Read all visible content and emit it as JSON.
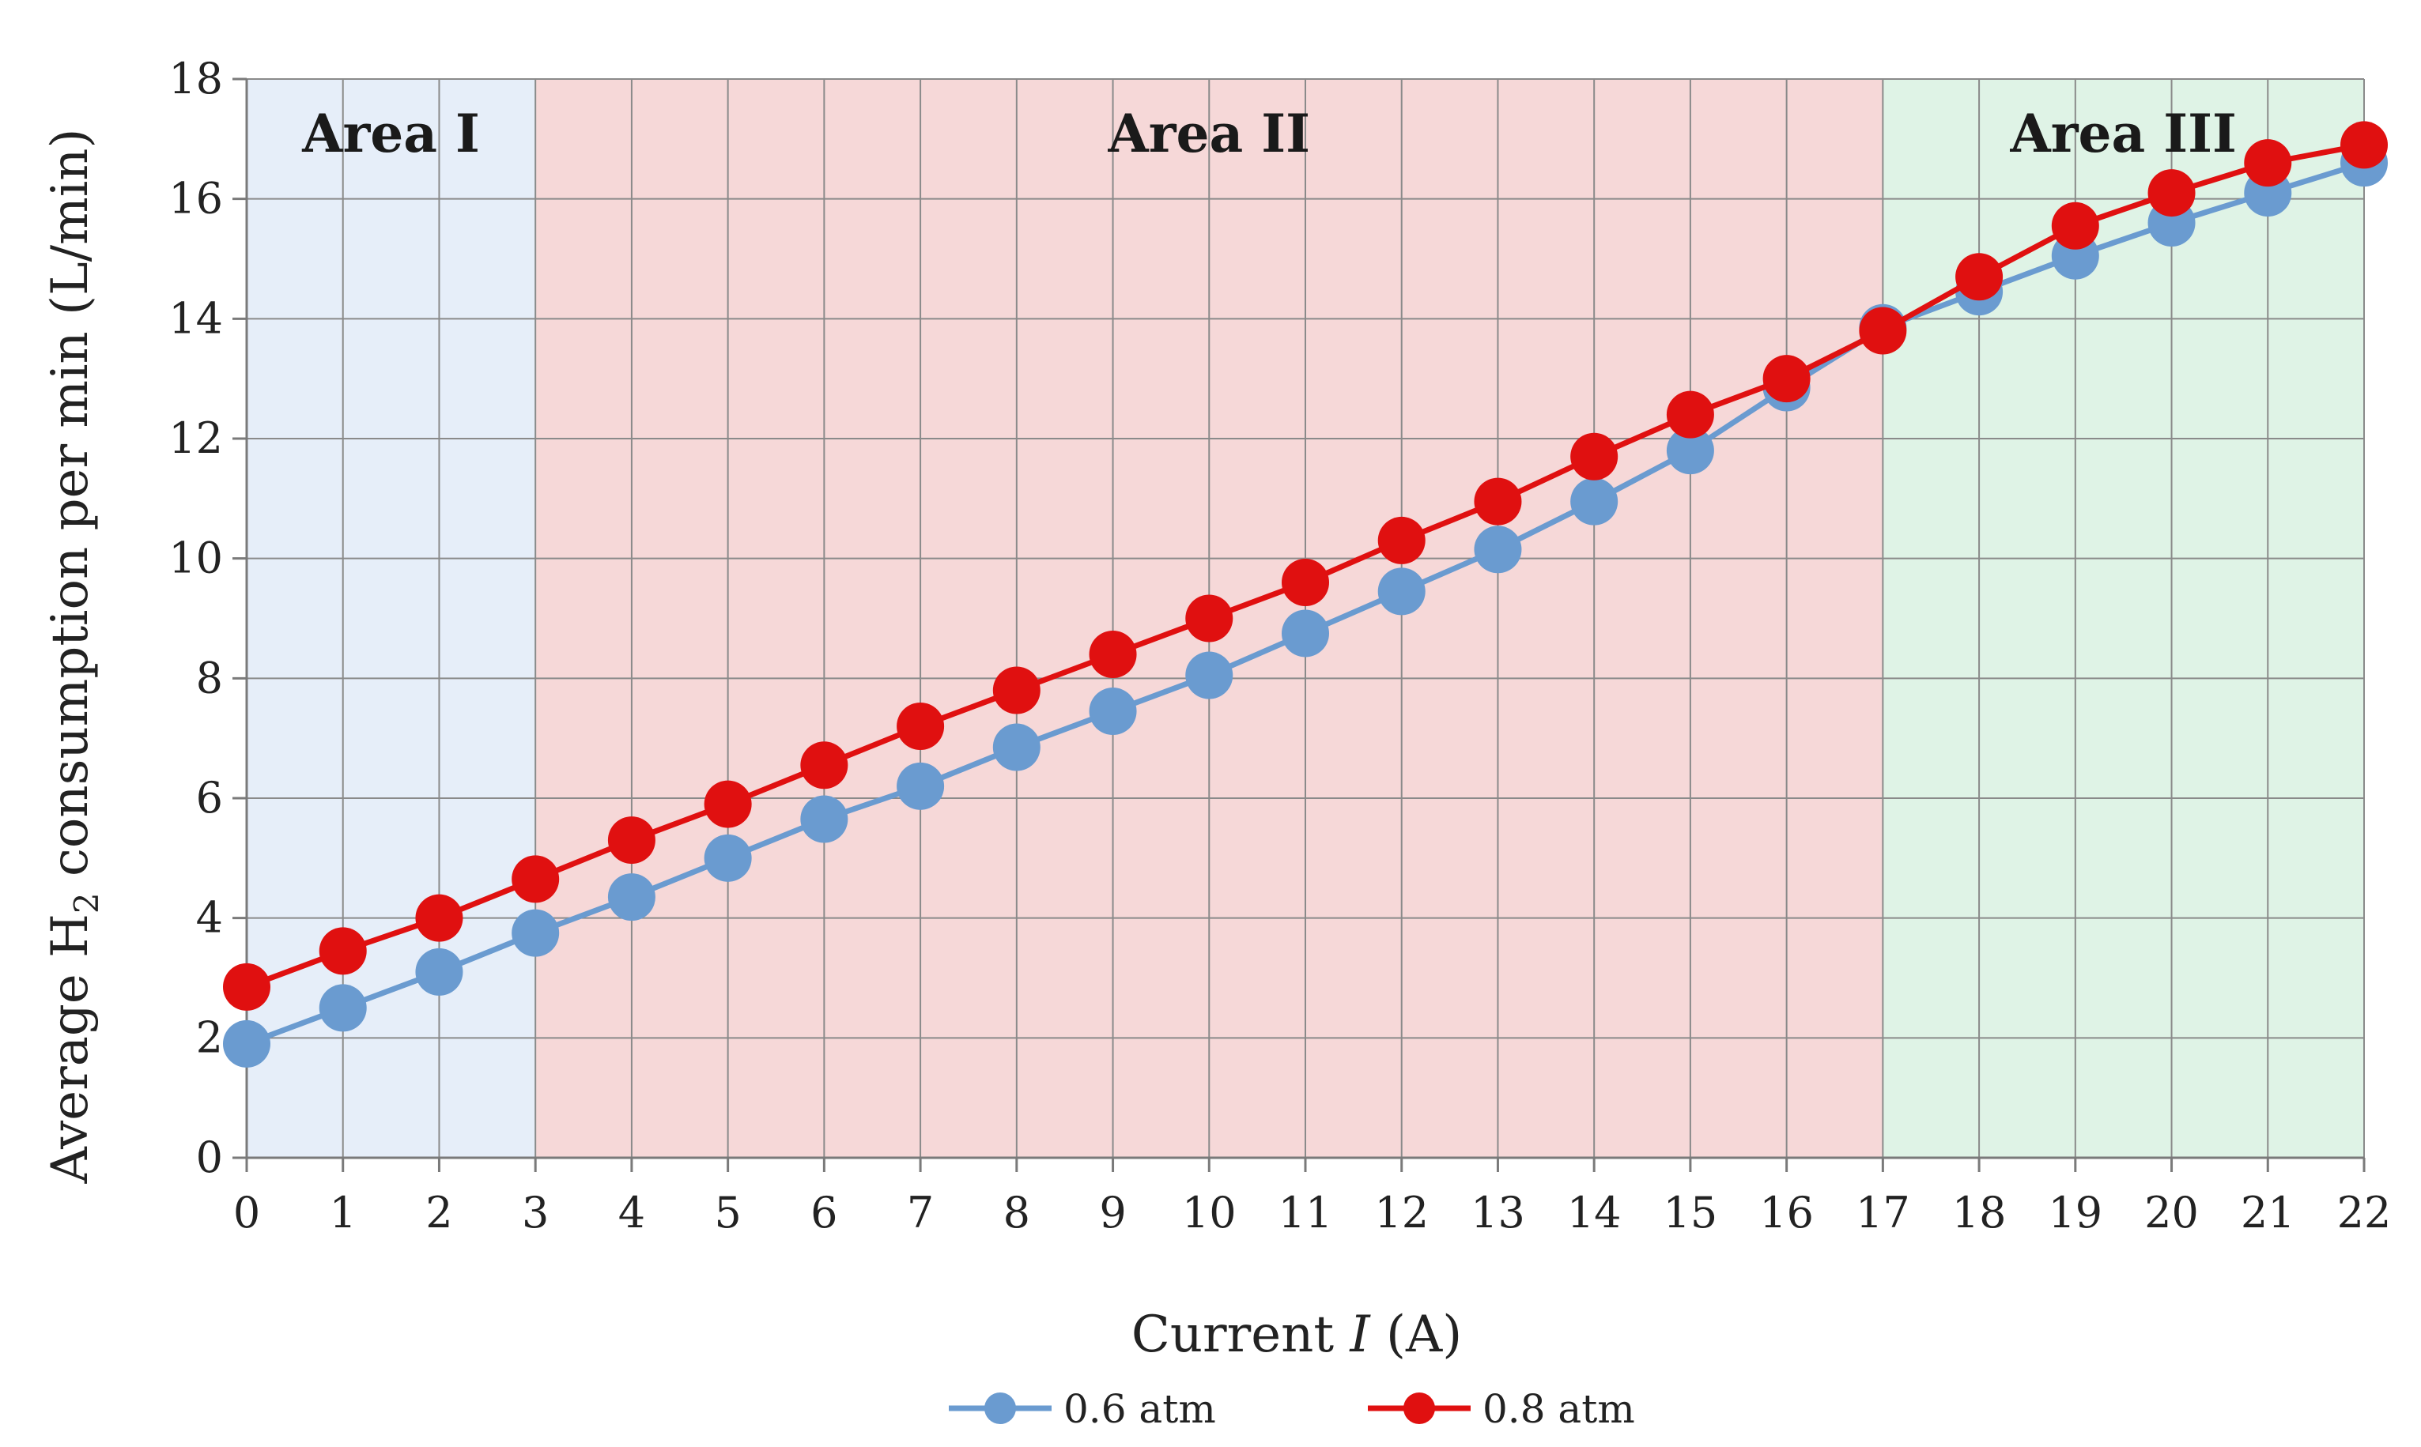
{
  "chart_data": {
    "type": "line",
    "xlabel_parts": [
      "Current ",
      "I",
      " (A)"
    ],
    "ylabel_parts": [
      "Average H",
      "2",
      " consumption per min (L/min)"
    ],
    "xlim": [
      0,
      22
    ],
    "ylim": [
      0,
      18
    ],
    "x_ticks": [
      0,
      1,
      2,
      3,
      4,
      5,
      6,
      7,
      8,
      9,
      10,
      11,
      12,
      13,
      14,
      15,
      16,
      17,
      18,
      19,
      20,
      21,
      22
    ],
    "y_ticks": [
      0,
      2,
      4,
      6,
      8,
      10,
      12,
      14,
      16,
      18
    ],
    "grid": true,
    "legend_position": "bottom",
    "x": [
      0,
      1,
      2,
      3,
      4,
      5,
      6,
      7,
      8,
      9,
      10,
      11,
      12,
      13,
      14,
      15,
      16,
      17,
      18,
      19,
      20,
      21,
      22
    ],
    "series": [
      {
        "name": "0.6 atm",
        "color": "#6a9bd0",
        "values": [
          1.9,
          2.5,
          3.1,
          3.75,
          4.35,
          5.0,
          5.65,
          6.2,
          6.85,
          7.45,
          8.05,
          8.75,
          9.45,
          10.15,
          10.95,
          11.8,
          12.85,
          13.85,
          14.45,
          15.05,
          15.6,
          16.1,
          16.6
        ]
      },
      {
        "name": "0.8 atm",
        "color": "#e01010",
        "values": [
          2.85,
          3.45,
          4.0,
          4.65,
          5.3,
          5.9,
          6.55,
          7.2,
          7.8,
          8.4,
          9.0,
          9.6,
          10.3,
          10.95,
          11.7,
          12.4,
          13.0,
          13.8,
          14.7,
          15.55,
          16.1,
          16.6,
          16.9
        ]
      }
    ],
    "areas": [
      {
        "label": "Area I",
        "x_start": 0,
        "x_end": 3,
        "color": "#e6eef9"
      },
      {
        "label": "Area II",
        "x_start": 3,
        "x_end": 17,
        "color": "#f6d8d8"
      },
      {
        "label": "Area III",
        "x_start": 17,
        "x_end": 22,
        "color": "#dff3e6"
      }
    ]
  }
}
